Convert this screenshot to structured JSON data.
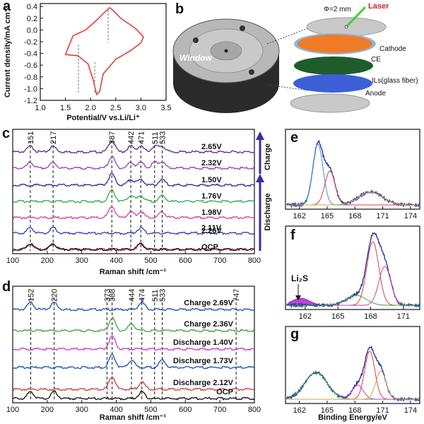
{
  "panels": {
    "a": {
      "label": "a",
      "xlabel": "Potential/V vs.Li/Li⁺",
      "ylabel": "Current density/mA cm⁻²",
      "xticks": [
        "1.0",
        "1.5",
        "2.0",
        "2.5",
        "3.0",
        "3.5"
      ],
      "yticks": [
        "0.4",
        "0.2",
        "0.0",
        "-0.2",
        "-0.4",
        "-0.6",
        "-0.8",
        "-1.0",
        "-1.2"
      ]
    },
    "b": {
      "label": "b",
      "window_label": "Window",
      "phi_label": "Φ=2 mm",
      "laser_label": "Laser",
      "layers": [
        "Cathode",
        "CE",
        "ILs(glass fiber)",
        "Anode"
      ]
    },
    "c": {
      "label": "c",
      "xlabel": "Raman shift /cm⁻¹",
      "xticks": [
        "100",
        "200",
        "300",
        "400",
        "500",
        "600",
        "700",
        "800"
      ],
      "peak_labels": [
        "151",
        "217",
        "387",
        "442",
        "471",
        "511",
        "533"
      ],
      "traces": [
        "2.65V",
        "2.32V",
        "1.50V",
        "1.76V",
        "1.98V",
        "2.11V",
        "2.26V",
        "OCP"
      ],
      "charge_label": "Charge",
      "discharge_label": "Discharge"
    },
    "d": {
      "label": "d",
      "xlabel": "Raman shift /cm⁻¹",
      "xticks": [
        "100",
        "200",
        "300",
        "400",
        "500",
        "600",
        "700",
        "800"
      ],
      "peak_labels": [
        "152",
        "220",
        "373",
        "388",
        "444",
        "474",
        "511",
        "533",
        "747"
      ],
      "traces": [
        "Charge 2.69V",
        "Charge 2.36V",
        "Discharge 1.40V",
        "Discharge 1.73V",
        "Discharge 2.12V",
        "OCP"
      ]
    },
    "e": {
      "label": "e",
      "xticks": [
        "162",
        "165",
        "168",
        "171",
        "174"
      ]
    },
    "f": {
      "label": "f",
      "xticks": [
        "162",
        "165",
        "168",
        "171"
      ],
      "annotation": "Li₂S"
    },
    "g": {
      "label": "g",
      "xlabel": "Binding Energy/eV",
      "xticks": [
        "162",
        "165",
        "168",
        "171",
        "174"
      ]
    }
  },
  "colors": {
    "cv": "#d9433a",
    "c_traces": [
      "#5a2a8a",
      "#9b3fb0",
      "#2b2b9c",
      "#2fa84f",
      "#d43f9d",
      "#2a3fb0",
      "#d63a3a",
      "#111111"
    ],
    "d_traces": [
      "#1f4fb5",
      "#3da83a",
      "#c23fc7",
      "#1f4fb5",
      "#d63a3a",
      "#111111"
    ],
    "arrow": "#3a2ba0"
  },
  "chart_data": [
    {
      "type": "line",
      "panel": "a",
      "xlabel": "Potential/V vs.Li/Li⁺",
      "ylabel": "Current density/mA cm⁻²",
      "xlim": [
        1.0,
        3.5
      ],
      "ylim": [
        -1.2,
        0.45
      ],
      "series": [
        {
          "x": [
            1.5,
            1.75,
            1.95,
            2.05,
            2.12,
            2.18,
            2.25,
            2.5,
            2.8,
            3.0,
            3.05,
            2.9,
            2.6,
            2.45,
            2.38,
            2.3,
            2.1,
            1.9,
            1.65,
            1.5
          ],
          "y": [
            -0.42,
            -0.44,
            -0.58,
            -0.85,
            -1.1,
            -1.05,
            -0.75,
            -0.5,
            -0.35,
            -0.22,
            -0.12,
            0.02,
            0.2,
            0.33,
            0.38,
            0.32,
            0.15,
            0.0,
            -0.1,
            -0.42
          ]
        }
      ]
    },
    {
      "type": "line",
      "panel": "c",
      "xlabel": "Raman shift /cm⁻¹",
      "xlim": [
        100,
        800
      ],
      "series": [
        {
          "name": "2.65V",
          "peaks": [
            151,
            217,
            387,
            442,
            471,
            511,
            533
          ]
        },
        {
          "name": "2.32V",
          "peaks": [
            151,
            217,
            387,
            442,
            471,
            511,
            533
          ]
        },
        {
          "name": "1.50V",
          "peaks": [
            387,
            442,
            471,
            533
          ]
        },
        {
          "name": "1.76V",
          "peaks": [
            387,
            442,
            471,
            533
          ]
        },
        {
          "name": "1.98V",
          "peaks": [
            387,
            442,
            471,
            533
          ]
        },
        {
          "name": "2.11V",
          "peaks": [
            151,
            217,
            471
          ]
        },
        {
          "name": "2.26V",
          "peaks": [
            151,
            217,
            471
          ]
        },
        {
          "name": "OCP",
          "peaks": [
            151,
            217,
            471
          ]
        }
      ]
    },
    {
      "type": "line",
      "panel": "d",
      "xlabel": "Raman shift /cm⁻¹",
      "xlim": [
        100,
        800
      ],
      "series": [
        {
          "name": "Charge 2.69V",
          "peaks": [
            152,
            220,
            474
          ]
        },
        {
          "name": "Charge 2.36V",
          "peaks": [
            388,
            444
          ]
        },
        {
          "name": "Discharge 1.40V",
          "peaks": [
            388
          ]
        },
        {
          "name": "Discharge 1.73V",
          "peaks": [
            388,
            444,
            533
          ]
        },
        {
          "name": "Discharge 2.12V",
          "peaks": [
            388,
            474
          ]
        },
        {
          "name": "OCP",
          "peaks": [
            152,
            220,
            474
          ]
        }
      ]
    }
  ]
}
